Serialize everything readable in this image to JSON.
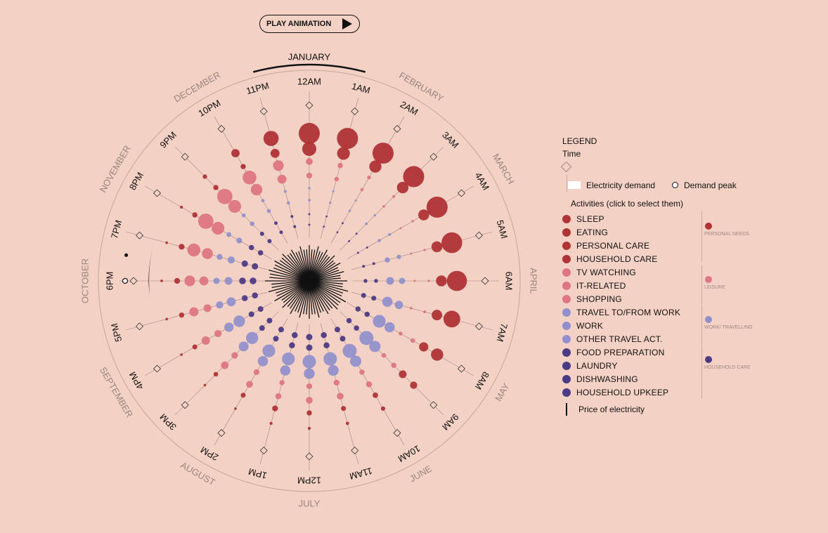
{
  "toolbar": {
    "play_label": "PLAY ANIMATION"
  },
  "chart_data": {
    "type": "radial-bubble",
    "hours": [
      "12AM",
      "1AM",
      "2AM",
      "3AM",
      "4AM",
      "5AM",
      "6AM",
      "7AM",
      "8AM",
      "9AM",
      "10AM",
      "11AM",
      "12PM",
      "1PM",
      "2PM",
      "3PM",
      "4PM",
      "5PM",
      "6PM",
      "7PM",
      "8PM",
      "9PM",
      "10PM",
      "11PM"
    ],
    "months": [
      "JANUARY",
      "FEBRUARY",
      "MARCH",
      "APRIL",
      "MAY",
      "JUNE",
      "JULY",
      "AUGUST",
      "SEPTEMBER",
      "OCTOBER",
      "NOVEMBER",
      "DECEMBER"
    ],
    "selected_month": "JANUARY",
    "electricity_demand": [
      0.82,
      0.8,
      0.78,
      0.76,
      0.8,
      0.88,
      0.9,
      0.95,
      0.92,
      0.88,
      0.86,
      0.86,
      0.86,
      0.86,
      0.88,
      0.9,
      0.92,
      0.96,
      1.0,
      0.98,
      0.94,
      0.9,
      0.86,
      0.84
    ],
    "demand_peak_hour": "6PM",
    "price_of_electricity": [
      0.5,
      0.5,
      0.5,
      0.5,
      0.5,
      0.5,
      0.6,
      0.7,
      0.8,
      0.7,
      0.6,
      0.6,
      0.6,
      0.6,
      0.6,
      0.6,
      0.7,
      0.8,
      0.9,
      0.8,
      0.7,
      0.6,
      0.5,
      0.5
    ],
    "rings": {
      "personal_needs": [
        1.0,
        0.9,
        0.85,
        0.8,
        0.75,
        0.75,
        0.75,
        0.72,
        0.62,
        0.5,
        0.32,
        0.28,
        0.3,
        0.35,
        0.28,
        0.25,
        0.28,
        0.3,
        0.35,
        0.35,
        0.3,
        0.3,
        0.3,
        0.6
      ],
      "sleep": [
        1.0,
        1.0,
        1.0,
        1.0,
        1.0,
        0.98,
        0.95,
        0.78,
        0.55,
        0.3,
        0.15,
        0.1,
        0.08,
        0.08,
        0.06,
        0.06,
        0.06,
        0.06,
        0.06,
        0.06,
        0.08,
        0.15,
        0.35,
        0.7
      ],
      "leisure": [
        0.35,
        0.25,
        0.15,
        0.1,
        0.06,
        0.06,
        0.06,
        0.1,
        0.2,
        0.25,
        0.3,
        0.35,
        0.35,
        0.3,
        0.35,
        0.4,
        0.45,
        0.5,
        0.6,
        0.75,
        0.9,
        0.9,
        0.8,
        0.6
      ],
      "work_travelling": [
        0.1,
        0.08,
        0.08,
        0.1,
        0.15,
        0.3,
        0.5,
        0.7,
        0.9,
        1.0,
        1.0,
        0.95,
        0.95,
        0.9,
        0.9,
        0.85,
        0.8,
        0.6,
        0.5,
        0.45,
        0.35,
        0.25,
        0.2,
        0.15
      ],
      "household_care": [
        0.1,
        0.08,
        0.08,
        0.08,
        0.1,
        0.2,
        0.35,
        0.5,
        0.55,
        0.55,
        0.6,
        0.65,
        0.7,
        0.65,
        0.6,
        0.6,
        0.6,
        0.65,
        0.75,
        0.7,
        0.55,
        0.4,
        0.3,
        0.2
      ]
    }
  },
  "legend": {
    "title": "LEGEND",
    "time_label": "Time",
    "electricity_demand_label": "Electricity demand",
    "demand_peak_label": "Demand peak",
    "activities_label": "Activities (click to select them)",
    "price_label": "Price of electricity",
    "activities": [
      {
        "name": "SLEEP",
        "color": "#b03336"
      },
      {
        "name": "EATING",
        "color": "#b03336"
      },
      {
        "name": "PERSONAL CARE",
        "color": "#b03336"
      },
      {
        "name": "HOUSEHOLD CARE",
        "color": "#b03336"
      },
      {
        "name": "TV WATCHING",
        "color": "#dd7682"
      },
      {
        "name": "IT-RELATED",
        "color": "#dd7682"
      },
      {
        "name": "SHOPPING",
        "color": "#dd7682"
      },
      {
        "name": "TRAVEL TO/FROM WORK",
        "color": "#9290cc"
      },
      {
        "name": "WORK",
        "color": "#9290cc"
      },
      {
        "name": "OTHER TRAVEL ACT.",
        "color": "#9290cc"
      },
      {
        "name": "FOOD PREPARATION",
        "color": "#4c3a84"
      },
      {
        "name": "LAUNDRY",
        "color": "#4c3a84"
      },
      {
        "name": "DISHWASHING",
        "color": "#4c3a84"
      },
      {
        "name": "HOUSEHOLD UPKEEP",
        "color": "#4c3a84"
      }
    ],
    "groups": [
      {
        "name": "PERSONAL NEEDS",
        "color": "#b03336"
      },
      {
        "name": "LEISURE",
        "color": "#dd7682"
      },
      {
        "name": "WORK/ TRAVELLING",
        "color": "#9290cc"
      },
      {
        "name": "HOUSEHOLD CARE",
        "color": "#4c3a84"
      }
    ]
  }
}
